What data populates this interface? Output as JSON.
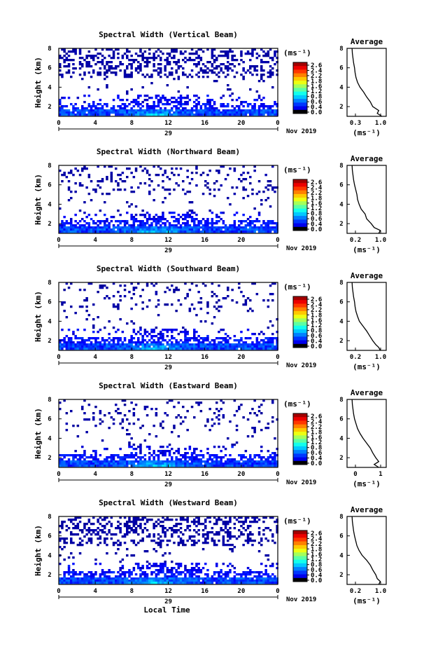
{
  "chart_data": [
    {
      "type": "heatmap",
      "title": "Spectral Width (Vertical Beam)",
      "ylabel": "Height (km)",
      "yticks": [
        "2",
        "4",
        "6",
        "8"
      ],
      "ylim": [
        1,
        8
      ],
      "xlim": [
        0,
        24
      ],
      "xticks": [
        "0",
        "4",
        "8",
        "12",
        "16",
        "20",
        "0"
      ],
      "day_label": "29",
      "date_label": "Nov 2019",
      "colorbar": {
        "unit": "(ms⁻¹)",
        "ticks": [
          "2.6",
          "2.4",
          "2.2",
          "1.8",
          "1.6",
          "1.2",
          "0.8",
          "0.6",
          "0.4",
          "0.0"
        ],
        "range": [
          0,
          2.8
        ]
      },
      "profile": {
        "title": "Average",
        "xlabel": "(ms⁻¹)",
        "xticks": [
          "0.3",
          "1.0"
        ],
        "yticks": [
          "2",
          "4",
          "6",
          "8"
        ],
        "height_km": [
          1.0,
          1.3,
          1.6,
          2.0,
          2.5,
          3.0,
          3.5,
          4.0,
          4.5,
          5.0,
          5.5,
          6.0,
          6.5,
          7.0,
          7.5,
          8.0
        ],
        "width_ms": [
          1.1,
          0.95,
          1.0,
          0.8,
          0.72,
          0.6,
          0.5,
          0.38,
          0.3,
          0.25,
          0.22,
          0.2,
          0.17,
          0.15,
          0.13,
          0.12
        ]
      }
    },
    {
      "type": "heatmap",
      "title": "Spectral Width (Northward Beam)",
      "ylabel": "Height (km)",
      "yticks": [
        "2",
        "4",
        "6",
        "8"
      ],
      "ylim": [
        1,
        8
      ],
      "xlim": [
        0,
        24
      ],
      "xticks": [
        "0",
        "4",
        "8",
        "12",
        "16",
        "20",
        "0"
      ],
      "day_label": "29",
      "date_label": "Nov 2019",
      "colorbar": {
        "unit": "(ms⁻¹)",
        "ticks": [
          "2.6",
          "2.4",
          "2.2",
          "1.8",
          "1.6",
          "1.2",
          "0.8",
          "0.6",
          "0.4",
          "0.0"
        ],
        "range": [
          0,
          2.8
        ]
      },
      "profile": {
        "title": "Average",
        "xlabel": "(ms⁻¹)",
        "xticks": [
          "0.2",
          "1.0"
        ],
        "yticks": [
          "2",
          "4",
          "6",
          "8"
        ],
        "height_km": [
          1.0,
          1.3,
          1.6,
          2.0,
          2.5,
          3.0,
          3.5,
          4.0,
          4.5,
          5.0,
          5.5,
          6.0,
          6.5,
          7.0,
          7.5,
          8.0
        ],
        "width_ms": [
          1.0,
          1.05,
          0.85,
          0.75,
          0.6,
          0.55,
          0.42,
          0.35,
          0.3,
          0.28,
          0.24,
          0.2,
          0.17,
          0.15,
          0.13,
          0.12
        ]
      }
    },
    {
      "type": "heatmap",
      "title": "Spectral Width (Southward Beam)",
      "ylabel": "Height (km)",
      "yticks": [
        "2",
        "4",
        "6",
        "8"
      ],
      "ylim": [
        1,
        8
      ],
      "xlim": [
        0,
        24
      ],
      "xticks": [
        "0",
        "4",
        "8",
        "12",
        "16",
        "20",
        "0"
      ],
      "day_label": "29",
      "date_label": "Nov 2019",
      "colorbar": {
        "unit": "(ms⁻¹)",
        "ticks": [
          "2.6",
          "2.4",
          "2.2",
          "1.8",
          "1.6",
          "1.2",
          "0.8",
          "0.6",
          "0.4",
          "0.0"
        ],
        "range": [
          0,
          2.8
        ]
      },
      "profile": {
        "title": "Average",
        "xlabel": "(ms⁻¹)",
        "xticks": [
          "0.2",
          "1.0"
        ],
        "yticks": [
          "2",
          "4",
          "6",
          "8"
        ],
        "height_km": [
          1.0,
          1.3,
          1.6,
          2.0,
          2.5,
          3.0,
          3.5,
          4.0,
          4.5,
          5.0,
          5.5,
          6.0,
          6.5,
          7.0,
          7.5,
          8.0
        ],
        "width_ms": [
          1.05,
          1.0,
          0.9,
          0.8,
          0.7,
          0.6,
          0.48,
          0.36,
          0.3,
          0.25,
          0.22,
          0.2,
          0.17,
          0.15,
          0.13,
          0.12
        ]
      }
    },
    {
      "type": "heatmap",
      "title": "Spectral Width (Eastward Beam)",
      "ylabel": "Height (km)",
      "yticks": [
        "2",
        "4",
        "6",
        "8"
      ],
      "ylim": [
        1,
        8
      ],
      "xlim": [
        0,
        24
      ],
      "xticks": [
        "0",
        "4",
        "8",
        "12",
        "16",
        "20",
        "0"
      ],
      "day_label": "29",
      "date_label": "Nov 2019",
      "colorbar": {
        "unit": "(ms⁻¹)",
        "ticks": [
          "2.6",
          "2.4",
          "2.2",
          "1.8",
          "1.6",
          "1.2",
          "0.8",
          "0.6",
          "0.4",
          "0.0"
        ],
        "range": [
          0,
          2.8
        ]
      },
      "profile": {
        "title": "Average",
        "xlabel": "(ms⁻¹)",
        "xticks": [
          "0",
          "1"
        ],
        "yticks": [
          "2",
          "4",
          "6",
          "8"
        ],
        "height_km": [
          1.0,
          1.3,
          1.6,
          2.0,
          2.5,
          3.0,
          3.5,
          4.0,
          4.5,
          5.0,
          5.5,
          6.0,
          6.5,
          7.0,
          7.5,
          8.0
        ],
        "width_ms": [
          1.0,
          0.85,
          1.0,
          0.9,
          0.8,
          0.72,
          0.6,
          0.48,
          0.38,
          0.3,
          0.25,
          0.2,
          0.17,
          0.15,
          0.13,
          0.12
        ]
      }
    },
    {
      "type": "heatmap",
      "title": "Spectral Width (Westward Beam)",
      "ylabel": "Height (km)",
      "yticks": [
        "2",
        "4",
        "6",
        "8"
      ],
      "ylim": [
        1,
        8
      ],
      "xlim": [
        0,
        24
      ],
      "xticks": [
        "0",
        "4",
        "8",
        "12",
        "16",
        "20",
        "0"
      ],
      "day_label": "29",
      "date_label": "Nov 2019",
      "xlabel": "Local Time",
      "colorbar": {
        "unit": "(ms⁻¹)",
        "ticks": [
          "2.6",
          "2.4",
          "2.2",
          "1.8",
          "1.6",
          "1.2",
          "0.8",
          "0.6",
          "0.4",
          "0.0"
        ],
        "range": [
          0,
          2.8
        ]
      },
      "profile": {
        "title": "Average",
        "xlabel": "(ms⁻¹)",
        "xticks": [
          "0.2",
          "1.0"
        ],
        "yticks": [
          "2",
          "4",
          "6",
          "8"
        ],
        "height_km": [
          1.0,
          1.3,
          1.6,
          2.0,
          2.5,
          3.0,
          3.5,
          4.0,
          4.5,
          5.0,
          5.5,
          6.0,
          6.5,
          7.0,
          7.5,
          8.0
        ],
        "width_ms": [
          1.0,
          1.05,
          0.95,
          0.9,
          0.8,
          0.72,
          0.6,
          0.45,
          0.35,
          0.28,
          0.24,
          0.2,
          0.17,
          0.15,
          0.13,
          0.12
        ]
      }
    }
  ]
}
